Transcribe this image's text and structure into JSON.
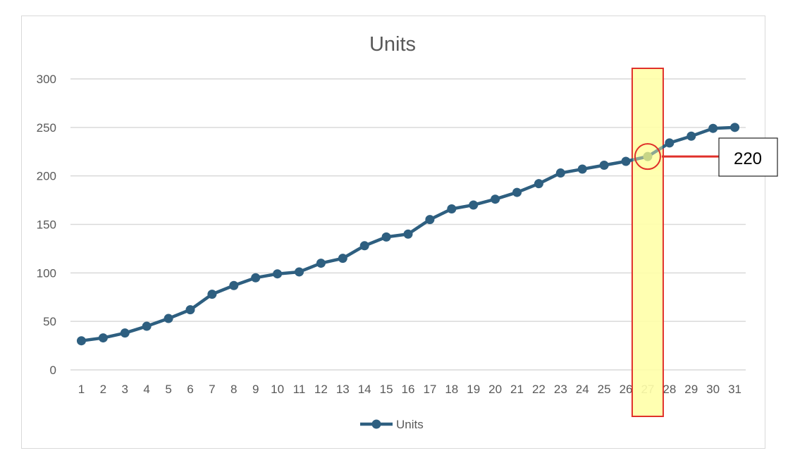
{
  "chart_data": {
    "type": "line",
    "title": "Units",
    "xlabel": "",
    "ylabel": "",
    "categories": [
      "1",
      "2",
      "3",
      "4",
      "5",
      "6",
      "7",
      "8",
      "9",
      "10",
      "11",
      "12",
      "13",
      "14",
      "15",
      "16",
      "17",
      "18",
      "19",
      "20",
      "21",
      "22",
      "23",
      "24",
      "25",
      "26",
      "27",
      "28",
      "29",
      "30",
      "31"
    ],
    "series": [
      {
        "name": "Units",
        "values": [
          30,
          33,
          38,
          45,
          53,
          62,
          78,
          87,
          95,
          99,
          101,
          110,
          115,
          128,
          137,
          140,
          155,
          166,
          170,
          176,
          183,
          192,
          203,
          207,
          211,
          215,
          220,
          234,
          241,
          249,
          250
        ]
      }
    ],
    "ylim": [
      0,
      300
    ],
    "yticks": [
      "0",
      "50",
      "100",
      "150",
      "200",
      "250",
      "300"
    ],
    "grid": true,
    "legend": "bottom",
    "colors": {
      "series": "#2e5f80",
      "highlight_point": "#9ab26a",
      "highlight_fill": "#ffffa8",
      "highlight_border": "#e0302a"
    },
    "annotation": {
      "category": "27",
      "label": "220"
    }
  }
}
